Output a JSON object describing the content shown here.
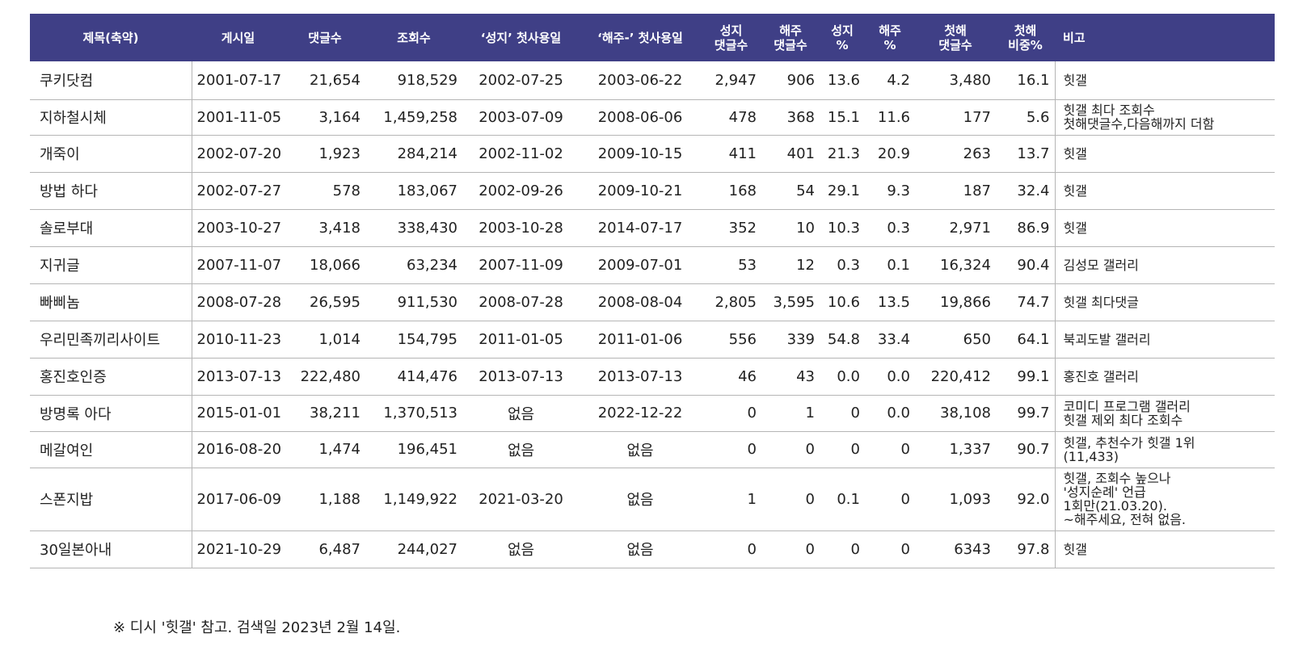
{
  "headers": [
    "제목(축약)",
    "게시일",
    "댓글수",
    "조회수",
    "‘성지’ 첫사용일",
    "‘해주-’ 첫사용일",
    "성지\n댓글수",
    "해주\n댓글수",
    "성지\n%",
    "해주\n%",
    "첫해\n댓글수",
    "첫해\n비중%",
    "비고"
  ],
  "rows": [
    {
      "title": "쿠키닷컴",
      "date": "2001-07-17",
      "comments": "21,654",
      "views": "918,529",
      "seongji_first": "2002-07-25",
      "haeju_first": "2003-06-22",
      "seongji_comments": "2,947",
      "haeju_comments": "906",
      "seongji_pct": "13.6",
      "haeju_pct": "4.2",
      "first_year_comments": "3,480",
      "first_year_pct": "16.1",
      "note": "힛갤"
    },
    {
      "title": "지하철시체",
      "date": "2001-11-05",
      "comments": "3,164",
      "views": "1,459,258",
      "seongji_first": "2003-07-09",
      "haeju_first": "2008-06-06",
      "seongji_comments": "478",
      "haeju_comments": "368",
      "seongji_pct": "15.1",
      "haeju_pct": "11.6",
      "first_year_comments": "177",
      "first_year_pct": "5.6",
      "note": "힛갤 최다 조회수\n첫해댓글수,다음해까지 더함"
    },
    {
      "title": "개죽이",
      "date": "2002-07-20",
      "comments": "1,923",
      "views": "284,214",
      "seongji_first": "2002-11-02",
      "haeju_first": "2009-10-15",
      "seongji_comments": "411",
      "haeju_comments": "401",
      "seongji_pct": "21.3",
      "haeju_pct": "20.9",
      "first_year_comments": "263",
      "first_year_pct": "13.7",
      "note": "힛갤"
    },
    {
      "title": "방법 하다",
      "date": "2002-07-27",
      "comments": "578",
      "views": "183,067",
      "seongji_first": "2002-09-26",
      "haeju_first": "2009-10-21",
      "seongji_comments": "168",
      "haeju_comments": "54",
      "seongji_pct": "29.1",
      "haeju_pct": "9.3",
      "first_year_comments": "187",
      "first_year_pct": "32.4",
      "note": "힛갤"
    },
    {
      "title": "솔로부대",
      "date": "2003-10-27",
      "comments": "3,418",
      "views": "338,430",
      "seongji_first": "2003-10-28",
      "haeju_first": "2014-07-17",
      "seongji_comments": "352",
      "haeju_comments": "10",
      "seongji_pct": "10.3",
      "haeju_pct": "0.3",
      "first_year_comments": "2,971",
      "first_year_pct": "86.9",
      "note": "힛갤"
    },
    {
      "title": "지귀글",
      "date": "2007-11-07",
      "comments": "18,066",
      "views": "63,234",
      "seongji_first": "2007-11-09",
      "haeju_first": "2009-07-01",
      "seongji_comments": "53",
      "haeju_comments": "12",
      "seongji_pct": "0.3",
      "haeju_pct": "0.1",
      "first_year_comments": "16,324",
      "first_year_pct": "90.4",
      "note": "김성모 갤러리"
    },
    {
      "title": "빠삐놈",
      "date": "2008-07-28",
      "comments": "26,595",
      "views": "911,530",
      "seongji_first": "2008-07-28",
      "haeju_first": "2008-08-04",
      "seongji_comments": "2,805",
      "haeju_comments": "3,595",
      "seongji_pct": "10.6",
      "haeju_pct": "13.5",
      "first_year_comments": "19,866",
      "first_year_pct": "74.7",
      "note": "힛갤 최다댓글"
    },
    {
      "title": "우리민족끼리사이트",
      "date": "2010-11-23",
      "comments": "1,014",
      "views": "154,795",
      "seongji_first": "2011-01-05",
      "haeju_first": "2011-01-06",
      "seongji_comments": "556",
      "haeju_comments": "339",
      "seongji_pct": "54.8",
      "haeju_pct": "33.4",
      "first_year_comments": "650",
      "first_year_pct": "64.1",
      "note": "북괴도발 갤러리"
    },
    {
      "title": "홍진호인증",
      "date": "2013-07-13",
      "comments": "222,480",
      "views": "414,476",
      "seongji_first": "2013-07-13",
      "haeju_first": "2013-07-13",
      "seongji_comments": "46",
      "haeju_comments": "43",
      "seongji_pct": "0.0",
      "haeju_pct": "0.0",
      "first_year_comments": "220,412",
      "first_year_pct": "99.1",
      "note": "홍진호 갤러리"
    },
    {
      "title": "방명록 아다",
      "date": "2015-01-01",
      "comments": "38,211",
      "views": "1,370,513",
      "seongji_first": "없음",
      "haeju_first": "2022-12-22",
      "seongji_comments": "0",
      "haeju_comments": "1",
      "seongji_pct": "0",
      "haeju_pct": "0.0",
      "first_year_comments": "38,108",
      "first_year_pct": "99.7",
      "note": "코미디 프로그램 갤러리\n힛갤 제외 최다 조회수"
    },
    {
      "title": "메갈여인",
      "date": "2016-08-20",
      "comments": "1,474",
      "views": "196,451",
      "seongji_first": "없음",
      "haeju_first": "없음",
      "seongji_comments": "0",
      "haeju_comments": "0",
      "seongji_pct": "0",
      "haeju_pct": "0",
      "first_year_comments": "1,337",
      "first_year_pct": "90.7",
      "note": "힛갤, 추천수가 힛갤 1위\n(11,433)"
    },
    {
      "title": "스폰지밥",
      "date": "2017-06-09",
      "comments": "1,188",
      "views": "1,149,922",
      "seongji_first": "2021-03-20",
      "haeju_first": "없음",
      "seongji_comments": "1",
      "haeju_comments": "0",
      "seongji_pct": "0.1",
      "haeju_pct": "0",
      "first_year_comments": "1,093",
      "first_year_pct": "92.0",
      "note": "힛갤, 조회수 높으나\n'성지순례' 언급\n1회만(21.03.20).\n~해주세요, 전혀 없음."
    },
    {
      "title": "30일본아내",
      "date": "2021-10-29",
      "comments": "6,487",
      "views": "244,027",
      "seongji_first": "없음",
      "haeju_first": "없음",
      "seongji_comments": "0",
      "haeju_comments": "0",
      "seongji_pct": "0",
      "haeju_pct": "0",
      "first_year_comments": "6343",
      "first_year_pct": "97.8",
      "note": "힛갤"
    }
  ],
  "footnote": "※ 디시 '힛갤' 참고. 검색일 2023년 2월 14일.",
  "colors": {
    "header_bg": "#3f3f86",
    "header_text": "#ffffff",
    "border": "#b5b5b5"
  }
}
